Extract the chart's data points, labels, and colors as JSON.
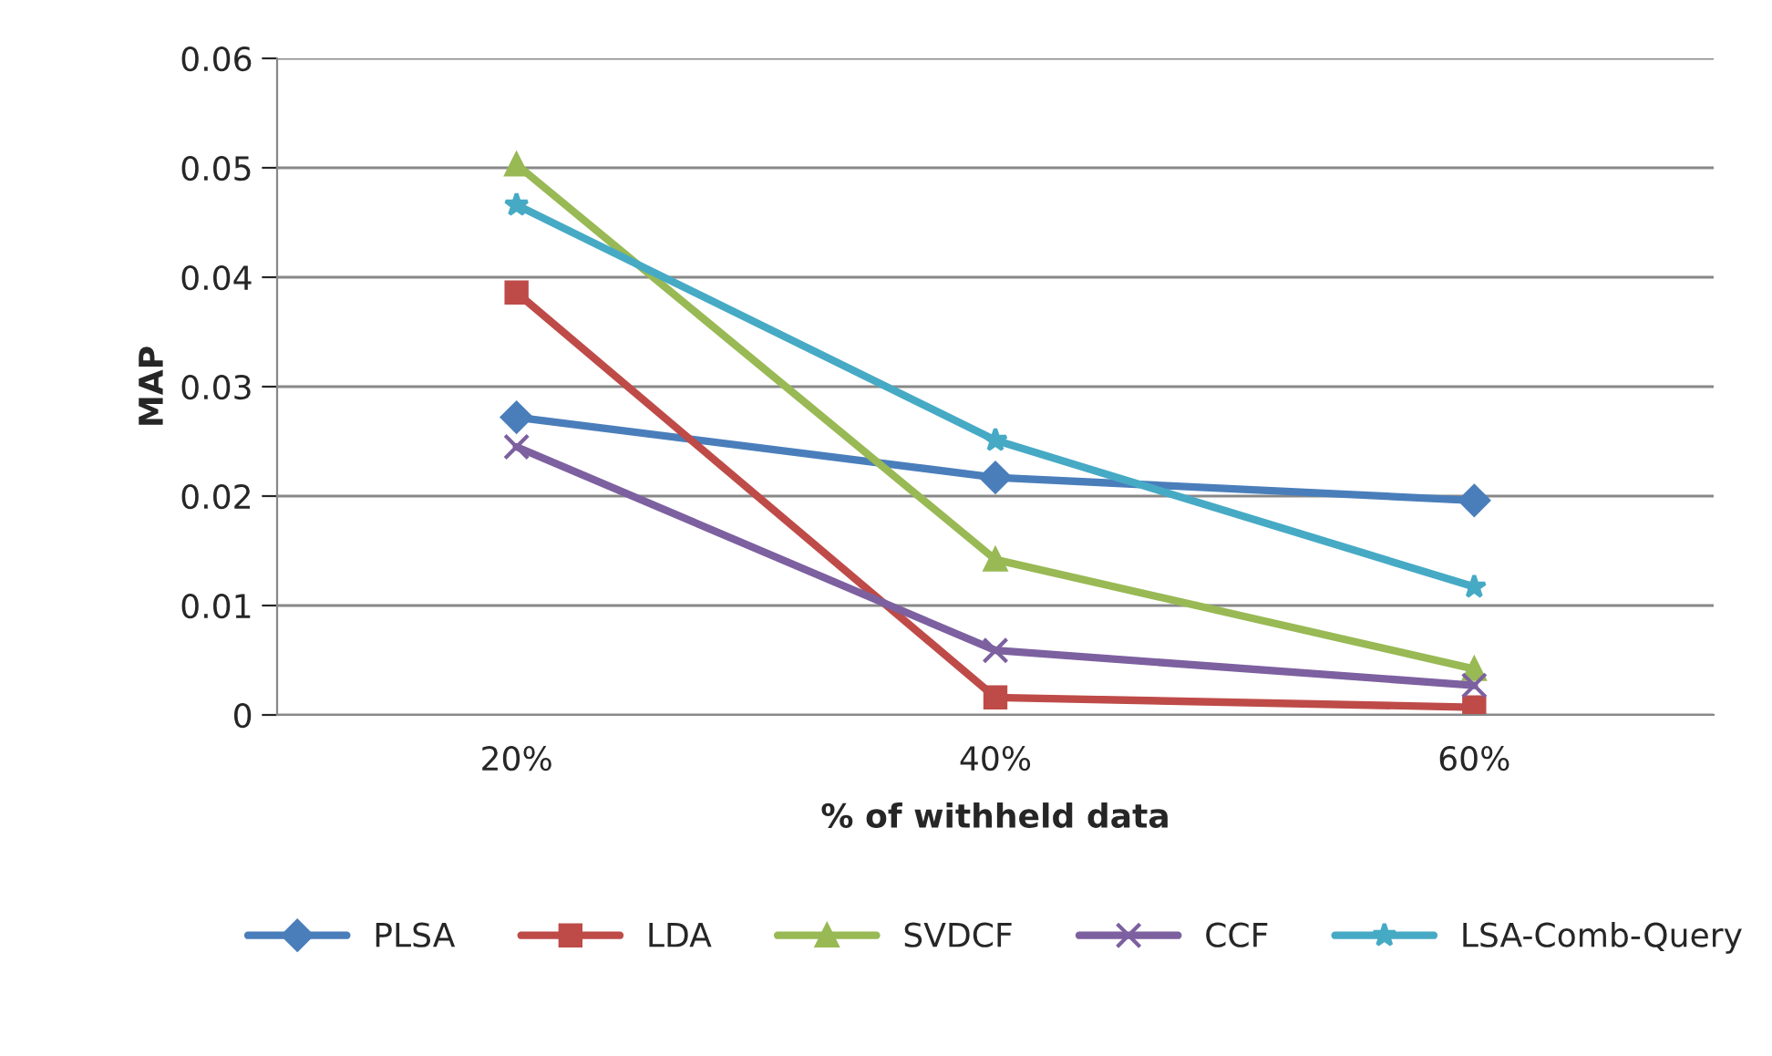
{
  "chart_data": {
    "type": "line",
    "xlabel": "% of withheld data",
    "ylabel": "MAP",
    "categories": [
      "20%",
      "40%",
      "60%"
    ],
    "series": [
      {
        "name": "PLSA",
        "color": "#4a7ebb",
        "marker": "diamond",
        "values": [
          0.0272,
          0.0217,
          0.0196
        ]
      },
      {
        "name": "LDA",
        "color": "#be4b48",
        "marker": "square",
        "values": [
          0.0386,
          0.0016,
          0.0007
        ]
      },
      {
        "name": "SVDCF",
        "color": "#98b954",
        "marker": "triangle",
        "values": [
          0.0503,
          0.0142,
          0.0042
        ]
      },
      {
        "name": "CCF",
        "color": "#7d60a0",
        "marker": "cross",
        "values": [
          0.0245,
          0.0059,
          0.0027
        ]
      },
      {
        "name": "LSA-Comb-Query",
        "color": "#46aac5",
        "marker": "star",
        "values": [
          0.0466,
          0.0251,
          0.0117
        ]
      }
    ],
    "ylim": [
      0,
      0.06
    ],
    "yticks": [
      0,
      0.01,
      0.02,
      0.03,
      0.04,
      0.05,
      0.06
    ],
    "grid": "y",
    "legend": "bottom",
    "line_style": "solid"
  }
}
